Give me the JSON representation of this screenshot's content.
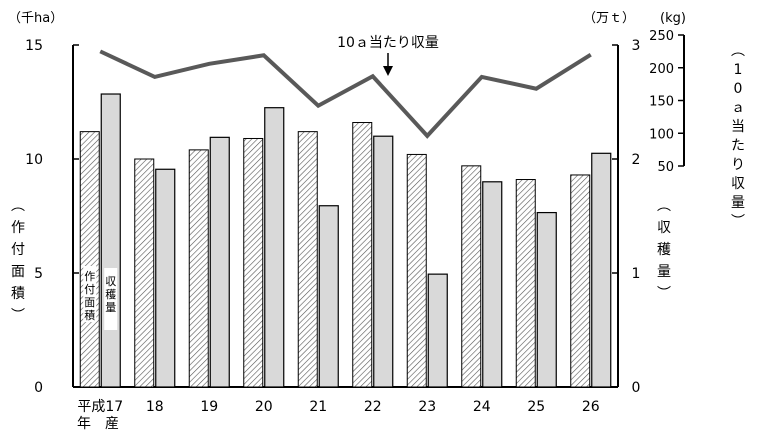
{
  "chart_data": {
    "type": "bar",
    "categories": [
      "平成17",
      "18",
      "19",
      "20",
      "21",
      "22",
      "23",
      "24",
      "25",
      "26"
    ],
    "category_note": "年　産",
    "series": [
      {
        "name": "作付面積",
        "axis": "left",
        "pattern": "hatch",
        "values": [
          11.2,
          10.0,
          10.4,
          10.9,
          11.2,
          11.6,
          10.2,
          9.7,
          9.1,
          9.3
        ]
      },
      {
        "name": "収穫量",
        "axis": "right",
        "pattern": "gray",
        "values": [
          2.57,
          1.91,
          2.19,
          2.45,
          1.59,
          2.2,
          0.99,
          1.8,
          1.53,
          2.05
        ]
      },
      {
        "name": "10ａ当たり収量",
        "axis": "right2",
        "type": "line",
        "color": "#595959",
        "values": [
          225,
          186,
          206,
          219,
          142,
          187,
          96,
          186,
          168,
          220
        ]
      }
    ],
    "left_axis": {
      "unit": "（千ha）",
      "label": "（作付面積）",
      "range": [
        0,
        15
      ],
      "ticks": [
        "0",
        "5",
        "10",
        "15"
      ]
    },
    "right_axis": {
      "unit": "（万ｔ）",
      "label": "（収穫量）",
      "range": [
        0,
        3
      ],
      "ticks": [
        "0",
        "1",
        "2",
        "3"
      ]
    },
    "right_axis2": {
      "unit": "(kg)",
      "label": "（10ａ当たり収量）",
      "range": [
        50,
        250
      ],
      "ticks": [
        "50",
        "100",
        "150",
        "200",
        "250"
      ]
    },
    "annotation": "10ａ当たり収量",
    "legend_inset": {
      "area": "作付面積",
      "harvest": "収穫量"
    }
  }
}
